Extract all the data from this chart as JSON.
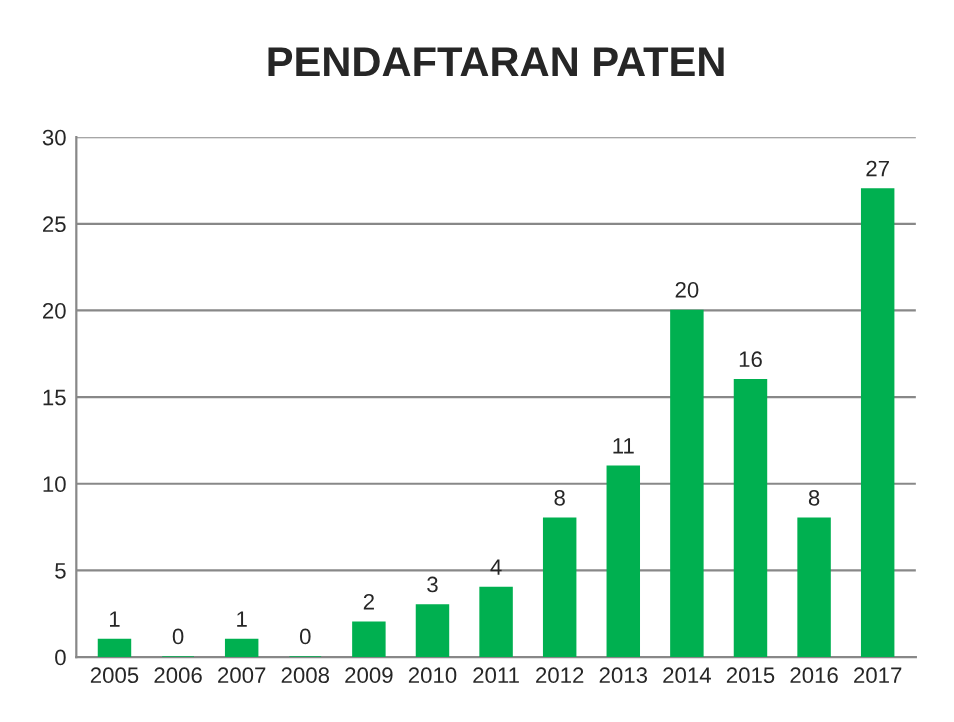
{
  "chart_data": {
    "type": "bar",
    "title": "PENDAFTARAN PATEN",
    "categories": [
      "2005",
      "2006",
      "2007",
      "2008",
      "2009",
      "2010",
      "2011",
      "2012",
      "2013",
      "2014",
      "2015",
      "2016",
      "2017"
    ],
    "values": [
      1,
      0,
      1,
      0,
      2,
      3,
      4,
      8,
      11,
      20,
      16,
      8,
      27
    ],
    "color": "#00b050",
    "ylim": [
      0,
      30
    ],
    "yticks": [
      0,
      5,
      10,
      15,
      20,
      25,
      30
    ],
    "grid": "y",
    "data_labels": true
  }
}
